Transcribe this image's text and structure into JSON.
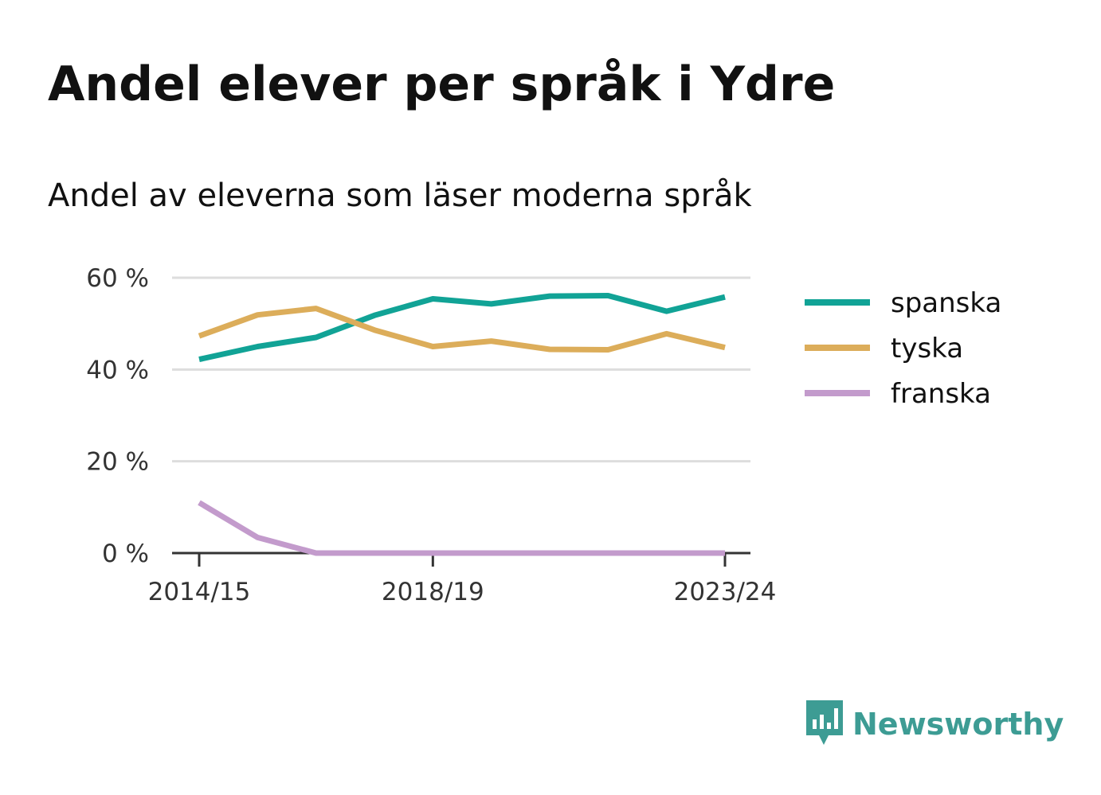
{
  "title": "Andel elever per språk i Ydre",
  "subtitle": "Andel av eleverna som läser moderna språk",
  "brand": {
    "name": "Newsworthy",
    "icon": "newsworthy-logo-icon",
    "color": "#3d9c94"
  },
  "chart_data": {
    "type": "line",
    "x": [
      "2014/15",
      "2015/16",
      "2016/17",
      "2017/18",
      "2018/19",
      "2019/20",
      "2020/21",
      "2021/22",
      "2022/23",
      "2023/24"
    ],
    "x_tick_labels": [
      "2014/15",
      "2018/19",
      "2023/24"
    ],
    "y_ticks": [
      0,
      20,
      40,
      60
    ],
    "y_tick_labels": [
      "0 %",
      "20 %",
      "40 %",
      "60 %"
    ],
    "ylim": [
      0,
      60
    ],
    "grid": true,
    "legend_position": "right",
    "series": [
      {
        "name": "spanska",
        "color": "#11a396",
        "values": [
          42.2,
          45.0,
          47.0,
          51.8,
          55.4,
          54.3,
          56.0,
          56.1,
          52.7,
          55.8
        ]
      },
      {
        "name": "tyska",
        "color": "#dcad5a",
        "values": [
          47.3,
          51.9,
          53.3,
          48.6,
          45.0,
          46.2,
          44.4,
          44.3,
          47.8,
          44.8
        ]
      },
      {
        "name": "franska",
        "color": "#c39bcc",
        "values": [
          11.0,
          3.4,
          0,
          0,
          0,
          0,
          0,
          0,
          0,
          0
        ]
      }
    ]
  }
}
